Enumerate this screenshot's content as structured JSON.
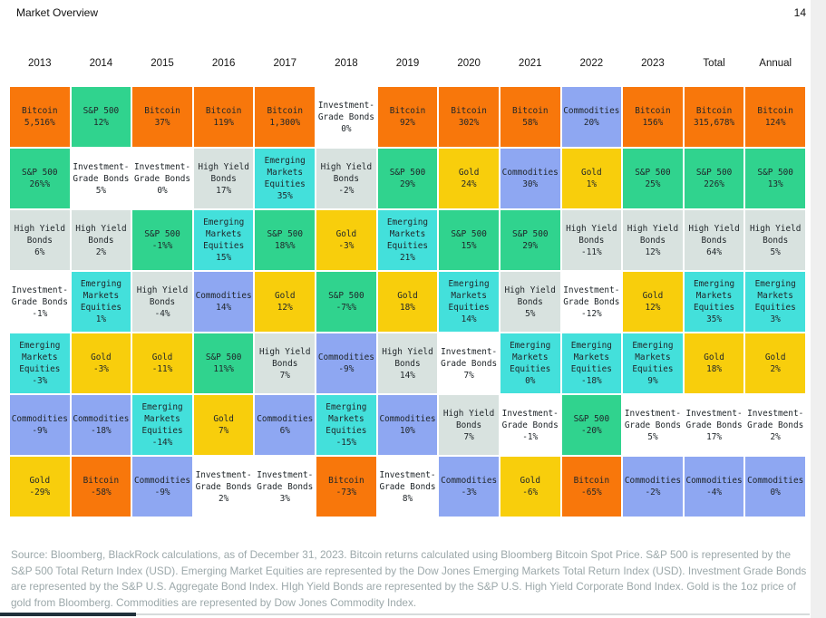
{
  "header": {
    "title": "Market Overview",
    "page_number": "14"
  },
  "chart_data": {
    "type": "table",
    "title": "Market Overview",
    "columns": [
      "2013",
      "2014",
      "2015",
      "2016",
      "2017",
      "2018",
      "2019",
      "2020",
      "2021",
      "2022",
      "2023",
      "Total",
      "Annual"
    ],
    "assets": {
      "Bitcoin": {
        "display": "Bitcoin",
        "color": "#F8770B"
      },
      "S&P 500": {
        "display": "S&P 500",
        "color": "#30D38E"
      },
      "High Yield Bonds": {
        "display": "High Yield\nBonds",
        "color": "#D8E2DF"
      },
      "Investment-Grade Bonds": {
        "display": "Investment-\nGrade Bonds",
        "color": "#FFFFFF"
      },
      "Emerging Markets Equities": {
        "display": "Emerging\nMarkets\nEquities",
        "color": "#43E0DB"
      },
      "Commodities": {
        "display": "Commodities",
        "color": "#8EA7F2"
      },
      "Gold": {
        "display": "Gold",
        "color": "#F8CE0C"
      }
    },
    "rows": [
      [
        [
          "Bitcoin",
          "5,516%"
        ],
        [
          "S&P 500",
          "12%"
        ],
        [
          "Bitcoin",
          "37%"
        ],
        [
          "Bitcoin",
          "119%"
        ],
        [
          "Bitcoin",
          "1,300%"
        ],
        [
          "Investment-Grade Bonds",
          "0%"
        ],
        [
          "Bitcoin",
          "92%"
        ],
        [
          "Bitcoin",
          "302%"
        ],
        [
          "Bitcoin",
          "58%"
        ],
        [
          "Commodities",
          "20%"
        ],
        [
          "Bitcoin",
          "156%"
        ],
        [
          "Bitcoin",
          "315,678%"
        ],
        [
          "Bitcoin",
          "124%"
        ]
      ],
      [
        [
          "S&P 500",
          "26%%"
        ],
        [
          "Investment-Grade Bonds",
          "5%"
        ],
        [
          "Investment-Grade Bonds",
          "0%"
        ],
        [
          "High Yield Bonds",
          "17%"
        ],
        [
          "Emerging Markets Equities",
          "35%"
        ],
        [
          "High Yield Bonds",
          "-2%"
        ],
        [
          "S&P 500",
          "29%"
        ],
        [
          "Gold",
          "24%"
        ],
        [
          "Commodities",
          "30%"
        ],
        [
          "Gold",
          "1%"
        ],
        [
          "S&P 500",
          "25%"
        ],
        [
          "S&P 500",
          "226%"
        ],
        [
          "S&P 500",
          "13%"
        ]
      ],
      [
        [
          "High Yield Bonds",
          "6%"
        ],
        [
          "High Yield Bonds",
          "2%"
        ],
        [
          "S&P 500",
          "-1%%"
        ],
        [
          "Emerging Markets Equities",
          "15%"
        ],
        [
          "S&P 500",
          "18%%"
        ],
        [
          "Gold",
          "-3%"
        ],
        [
          "Emerging Markets Equities",
          "21%"
        ],
        [
          "S&P 500",
          "15%"
        ],
        [
          "S&P 500",
          "29%"
        ],
        [
          "High Yield Bonds",
          "-11%"
        ],
        [
          "High Yield Bonds",
          "12%"
        ],
        [
          "High Yield Bonds",
          "64%"
        ],
        [
          "High Yield Bonds",
          "5%"
        ]
      ],
      [
        [
          "Investment-Grade Bonds",
          "-1%"
        ],
        [
          "Emerging Markets Equities",
          "1%"
        ],
        [
          "High Yield Bonds",
          "-4%"
        ],
        [
          "Commodities",
          "14%"
        ],
        [
          "Gold",
          "12%"
        ],
        [
          "S&P 500",
          "-7%%"
        ],
        [
          "Gold",
          "18%"
        ],
        [
          "Emerging Markets Equities",
          "14%"
        ],
        [
          "High Yield Bonds",
          "5%"
        ],
        [
          "Investment-Grade Bonds",
          "-12%"
        ],
        [
          "Gold",
          "12%"
        ],
        [
          "Emerging Markets Equities",
          "35%"
        ],
        [
          "Emerging Markets Equities",
          "3%"
        ]
      ],
      [
        [
          "Emerging Markets Equities",
          "-3%"
        ],
        [
          "Gold",
          "-3%"
        ],
        [
          "Gold",
          "-11%"
        ],
        [
          "S&P 500",
          "11%%"
        ],
        [
          "High Yield Bonds",
          "7%"
        ],
        [
          "Commodities",
          "-9%"
        ],
        [
          "High Yield Bonds",
          "14%"
        ],
        [
          "Investment-Grade Bonds",
          "7%"
        ],
        [
          "Emerging Markets Equities",
          "0%"
        ],
        [
          "Emerging Markets Equities",
          "-18%"
        ],
        [
          "Emerging Markets Equities",
          "9%"
        ],
        [
          "Gold",
          "18%"
        ],
        [
          "Gold",
          "2%"
        ]
      ],
      [
        [
          "Commodities",
          "-9%"
        ],
        [
          "Commodities",
          "-18%"
        ],
        [
          "Emerging Markets Equities",
          "-14%"
        ],
        [
          "Gold",
          "7%"
        ],
        [
          "Commodities",
          "6%"
        ],
        [
          "Emerging Markets Equities",
          "-15%"
        ],
        [
          "Commodities",
          "10%"
        ],
        [
          "High Yield Bonds",
          "7%"
        ],
        [
          "Investment-Grade Bonds",
          "-1%"
        ],
        [
          "S&P 500",
          "-20%"
        ],
        [
          "Investment-Grade Bonds",
          "5%"
        ],
        [
          "Investment-Grade Bonds",
          "17%"
        ],
        [
          "Investment-Grade Bonds",
          "2%"
        ]
      ],
      [
        [
          "Gold",
          "-29%"
        ],
        [
          "Bitcoin",
          "-58%"
        ],
        [
          "Commodities",
          "-9%"
        ],
        [
          "Investment-Grade Bonds",
          "2%"
        ],
        [
          "Investment-Grade Bonds",
          "3%"
        ],
        [
          "Bitcoin",
          "-73%"
        ],
        [
          "Investment-Grade Bonds",
          "8%"
        ],
        [
          "Commodities",
          "-3%"
        ],
        [
          "Gold",
          "-6%"
        ],
        [
          "Bitcoin",
          "-65%"
        ],
        [
          "Commodities",
          "-2%"
        ],
        [
          "Commodities",
          "-4%"
        ],
        [
          "Commodities",
          "0%"
        ]
      ]
    ]
  },
  "footer": {
    "source": "Source: Bloomberg, BlackRock calculations, as of December 31, 2023. Bitcoin returns calculated using Bloomberg Bitcoin Spot Price. S&P 500 is represented by the S&P 500 Total Return Index (USD). Emerging Market Equities are represented by the Dow Jones Emerging Markets Total Return Index (USD). Investment Grade Bonds are represented by the S&P U.S. Aggregate Bond Index. HIgh Yield Bonds are represented by the S&P U.S. High Yield Corporate Bond Index. Gold is the 1oz price of gold from Bloomberg. Commodities are represented by Dow Jones Commodity Index."
  },
  "progress": {
    "fraction_complete": "17%"
  }
}
